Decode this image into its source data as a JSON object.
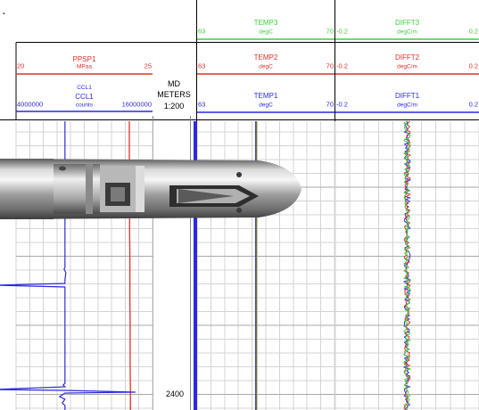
{
  "page": {
    "corner_mark": "."
  },
  "chart_data": {
    "type": "line",
    "depth": {
      "title": "MD",
      "unit": "METERS",
      "scale": "1:200",
      "tick_label": "2400"
    },
    "tracks": [
      {
        "id": "track1",
        "curves": [
          {
            "name": "PPSP1",
            "unit": "MPaa",
            "min": "20",
            "max": "25",
            "color": "#e0302a",
            "samples": [
              24.15,
              24.15,
              24.15,
              24.16,
              24.16,
              24.16,
              24.17,
              24.17,
              24.17,
              24.18,
              24.18,
              24.18,
              24.19,
              24.19
            ]
          },
          {
            "name": "CCL1",
            "unit": "counts",
            "min": "4000000",
            "max": "16000000",
            "color": "#2a2adf",
            "label_alias": "CCL1",
            "baseline": 8300000,
            "collar_spikes": [
              2200000,
              2000000,
              14500000
            ]
          }
        ]
      },
      {
        "id": "track2",
        "curves": [
          {
            "name": "TEMP3",
            "unit": "degC",
            "min": "63",
            "max": "70",
            "color": "#3fcf3f"
          },
          {
            "name": "TEMP2",
            "unit": "degC",
            "min": "63",
            "max": "70",
            "color": "#e0302a"
          },
          {
            "name": "TEMP1",
            "unit": "degC",
            "min": "63",
            "max": "70",
            "color": "#2a2adf",
            "value": 66.0
          }
        ]
      },
      {
        "id": "track3",
        "curves": [
          {
            "name": "DIFFT3",
            "unit": "degC/m",
            "min": "-0.2",
            "max": "0.2",
            "color": "#3fcf3f"
          },
          {
            "name": "DIFFT2",
            "unit": "degC/m",
            "min": "-0.2",
            "max": "0.2",
            "color": "#e0302a"
          },
          {
            "name": "DIFFT1",
            "unit": "degC/m",
            "min": "-0.2",
            "max": "0.2",
            "color": "#2a2adf",
            "center": 0.0
          }
        ]
      }
    ],
    "grid": true,
    "overlay_image": "downhole-logging-tool"
  }
}
